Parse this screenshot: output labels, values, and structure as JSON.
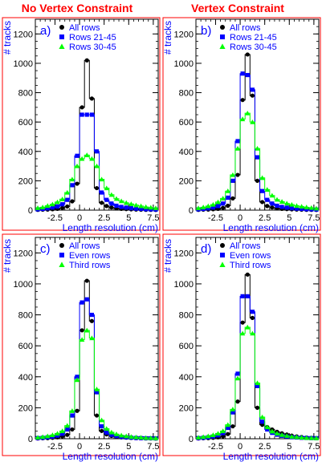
{
  "figure": {
    "column_titles": [
      "No Vertex Constraint",
      "Vertex Constraint"
    ],
    "title_color": "#ff0000",
    "axis_text_color": "#0000ff",
    "frame_color": "#ff0000"
  },
  "chart_data": [
    {
      "type": "scatter",
      "panel_label": "a)",
      "xlabel": "Length resolution (cm)",
      "ylabel": "# tracks",
      "xlim": [
        -4.5,
        8
      ],
      "ylim": [
        0,
        1300
      ],
      "xticks": [
        "-2.5",
        "0",
        "2.5",
        "5",
        "7.5"
      ],
      "yticks": [
        "0",
        "200",
        "400",
        "600",
        "800",
        "1000",
        "1200"
      ],
      "x": [
        -4.25,
        -3.75,
        -3.25,
        -2.75,
        -2.25,
        -1.75,
        -1.25,
        -0.75,
        -0.25,
        0.25,
        0.75,
        1.25,
        1.75,
        2.25,
        2.75,
        3.25,
        3.75,
        4.25,
        4.75,
        5.25,
        5.75,
        6.25,
        6.75,
        7.25,
        7.75
      ],
      "series": [
        {
          "name": "All rows",
          "color": "#000000",
          "marker": "circle",
          "values": [
            2,
            3,
            4,
            6,
            9,
            15,
            25,
            60,
            180,
            700,
            1020,
            760,
            150,
            50,
            28,
            18,
            12,
            9,
            7,
            5,
            4,
            3,
            2,
            2,
            1
          ]
        },
        {
          "name": "Rows 21-45",
          "color": "#0000ff",
          "marker": "square",
          "values": [
            5,
            8,
            12,
            18,
            25,
            40,
            70,
            170,
            370,
            650,
            650,
            650,
            400,
            120,
            70,
            45,
            30,
            22,
            17,
            13,
            10,
            8,
            6,
            5,
            4
          ]
        },
        {
          "name": "Rows 30-45",
          "color": "#00ff00",
          "marker": "triangle",
          "values": [
            15,
            20,
            30,
            40,
            55,
            75,
            120,
            210,
            300,
            350,
            375,
            350,
            300,
            210,
            150,
            105,
            78,
            62,
            50,
            42,
            34,
            28,
            22,
            18,
            14
          ]
        }
      ]
    },
    {
      "type": "scatter",
      "panel_label": "b)",
      "xlabel": "Length resolution (cm)",
      "ylabel": "# tracks",
      "xlim": [
        -4.5,
        8
      ],
      "ylim": [
        0,
        1300
      ],
      "xticks": [
        "-2.5",
        "0",
        "2.5",
        "5",
        "7.5"
      ],
      "yticks": [
        "0",
        "200",
        "400",
        "600",
        "800",
        "1000",
        "1200"
      ],
      "x": [
        -4.25,
        -3.75,
        -3.25,
        -2.75,
        -2.25,
        -1.75,
        -1.25,
        -0.75,
        -0.25,
        0.25,
        0.75,
        1.25,
        1.75,
        2.25,
        2.75,
        3.25,
        3.75,
        4.25,
        4.75,
        5.25,
        5.75,
        6.25,
        6.75,
        7.25,
        7.75
      ],
      "series": [
        {
          "name": "All rows",
          "color": "#000000",
          "marker": "circle",
          "values": [
            2,
            3,
            4,
            6,
            9,
            15,
            30,
            80,
            240,
            750,
            1060,
            780,
            200,
            55,
            28,
            18,
            12,
            9,
            7,
            5,
            4,
            3,
            2,
            2,
            1
          ]
        },
        {
          "name": "Rows 21-45",
          "color": "#0000ff",
          "marker": "square",
          "values": [
            5,
            8,
            12,
            18,
            28,
            45,
            85,
            200,
            470,
            930,
            920,
            820,
            360,
            130,
            70,
            45,
            30,
            22,
            17,
            13,
            10,
            8,
            6,
            5,
            4
          ]
        },
        {
          "name": "Rows 30-45",
          "color": "#00ff00",
          "marker": "triangle",
          "values": [
            14,
            20,
            28,
            38,
            55,
            80,
            130,
            240,
            420,
            620,
            660,
            600,
            420,
            220,
            140,
            100,
            72,
            58,
            46,
            38,
            30,
            25,
            20,
            16,
            12
          ]
        }
      ]
    },
    {
      "type": "scatter",
      "panel_label": "c)",
      "xlabel": "Length resolution (cm)",
      "ylabel": "# tracks",
      "xlim": [
        -4.5,
        8
      ],
      "ylim": [
        0,
        1300
      ],
      "xticks": [
        "-2.5",
        "0",
        "2.5",
        "5",
        "7.5"
      ],
      "yticks": [
        "0",
        "200",
        "400",
        "600",
        "800",
        "1000",
        "1200"
      ],
      "x": [
        -4.25,
        -3.75,
        -3.25,
        -2.75,
        -2.25,
        -1.75,
        -1.25,
        -0.75,
        -0.25,
        0.25,
        0.75,
        1.25,
        1.75,
        2.25,
        2.75,
        3.25,
        3.75,
        4.25,
        4.75,
        5.25,
        5.75,
        6.25,
        6.75,
        7.25,
        7.75
      ],
      "series": [
        {
          "name": "All rows",
          "color": "#000000",
          "marker": "circle",
          "values": [
            2,
            3,
            4,
            6,
            9,
            15,
            25,
            60,
            180,
            700,
            1020,
            760,
            150,
            50,
            28,
            18,
            12,
            9,
            7,
            5,
            4,
            3,
            2,
            2,
            1
          ]
        },
        {
          "name": "Even rows",
          "color": "#0000ff",
          "marker": "square",
          "values": [
            4,
            6,
            9,
            13,
            20,
            32,
            60,
            150,
            400,
            880,
            900,
            800,
            300,
            80,
            40,
            25,
            17,
            12,
            9,
            7,
            5,
            4,
            3,
            3,
            2
          ]
        },
        {
          "name": "Third rows",
          "color": "#00ff00",
          "marker": "triangle",
          "values": [
            8,
            12,
            17,
            24,
            34,
            50,
            85,
            180,
            380,
            640,
            700,
            650,
            320,
            120,
            65,
            42,
            30,
            22,
            17,
            13,
            10,
            8,
            6,
            5,
            4
          ]
        }
      ]
    },
    {
      "type": "scatter",
      "panel_label": "d)",
      "xlabel": "Length resolution (cm)",
      "ylabel": "# tracks",
      "xlim": [
        -4.5,
        8
      ],
      "ylim": [
        0,
        1300
      ],
      "xticks": [
        "-2.5",
        "0",
        "2.5",
        "5",
        "7.5"
      ],
      "yticks": [
        "0",
        "200",
        "400",
        "600",
        "800",
        "1000",
        "1200"
      ],
      "x": [
        -4.25,
        -3.75,
        -3.25,
        -2.75,
        -2.25,
        -1.75,
        -1.25,
        -0.75,
        -0.25,
        0.25,
        0.75,
        1.25,
        1.75,
        2.25,
        2.75,
        3.25,
        3.75,
        4.25,
        4.75,
        5.25,
        5.75,
        6.25,
        6.75,
        7.25,
        7.75
      ],
      "series": [
        {
          "name": "All rows",
          "color": "#000000",
          "marker": "circle",
          "values": [
            2,
            3,
            4,
            6,
            9,
            15,
            30,
            80,
            240,
            750,
            1060,
            780,
            200,
            90,
            75,
            60,
            45,
            35,
            27,
            20,
            15,
            11,
            8,
            6,
            4
          ]
        },
        {
          "name": "Even rows",
          "color": "#0000ff",
          "marker": "square",
          "values": [
            4,
            6,
            9,
            14,
            22,
            36,
            70,
            170,
            420,
            920,
            920,
            820,
            340,
            110,
            60,
            38,
            26,
            19,
            14,
            10,
            8,
            6,
            5,
            4,
            3
          ]
        },
        {
          "name": "Third rows",
          "color": "#00ff00",
          "marker": "triangle",
          "values": [
            8,
            12,
            17,
            24,
            34,
            50,
            90,
            190,
            390,
            680,
            720,
            680,
            360,
            140,
            75,
            48,
            34,
            25,
            19,
            14,
            11,
            8,
            6,
            5,
            4
          ]
        }
      ]
    }
  ]
}
